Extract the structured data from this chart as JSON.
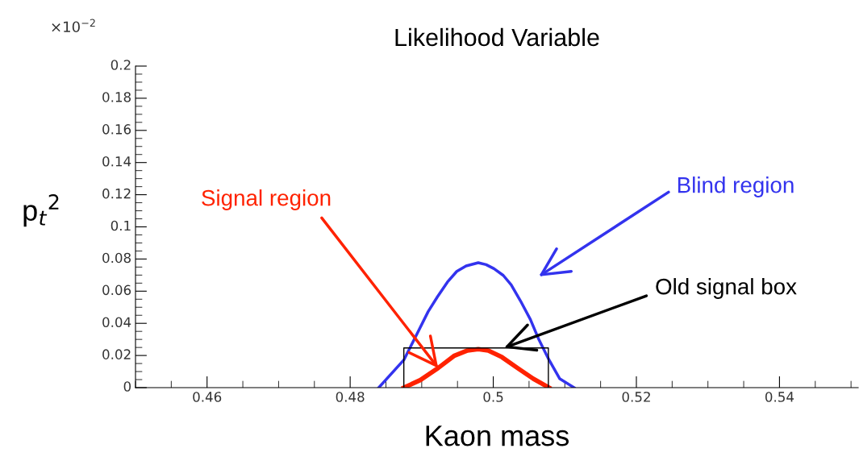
{
  "chart_data": {
    "type": "line",
    "title": "Likelihood Variable",
    "xlabel": "Kaon mass",
    "ylabel": "p$_{t}$$^{2}$",
    "series": [
      {
        "color": "#3333ee",
        "x": [
          0.484,
          0.4875,
          0.4894,
          0.4909,
          0.4922,
          0.4936,
          0.4949,
          0.4962,
          0.4979,
          0.499,
          0.5001,
          0.5014,
          0.5025,
          0.5038,
          0.5052,
          0.5063,
          0.5078,
          0.5093,
          0.5113
        ],
        "values": [
          0,
          0.0172,
          0.034,
          0.0473,
          0.0565,
          0.0657,
          0.0723,
          0.0757,
          0.0777,
          0.0765,
          0.074,
          0.0698,
          0.064,
          0.054,
          0.0423,
          0.0306,
          0.0172,
          0.0055,
          0
        ]
      },
      {
        "color": "#ff2200",
        "x": [
          0.4875,
          0.4898,
          0.4923,
          0.4945,
          0.4964,
          0.4979,
          0.4993,
          0.5012,
          0.5034,
          0.5056,
          0.5078
        ],
        "values": [
          0,
          0.0047,
          0.0122,
          0.0197,
          0.0231,
          0.0239,
          0.0231,
          0.019,
          0.0122,
          0.0055,
          0
        ]
      },
      {
        "color": "#000000",
        "x": [
          0.4875,
          0.4875,
          0.5077,
          0.5077
        ],
        "values": [
          0,
          0.0247,
          0.0247,
          0
        ]
      }
    ],
    "xlim": [
      0.45,
      0.551
    ],
    "xticks": [
      0.46,
      0.48,
      0.5,
      0.52,
      0.54
    ],
    "ylim": [
      0,
      0.2
    ],
    "yticks": [
      0,
      0.02,
      0.04,
      0.06,
      0.08,
      0.1,
      0.12,
      0.14,
      0.16,
      0.18,
      0.2
    ],
    "grid": false,
    "legend": false,
    "annotations": [
      "×10$^{−2}$",
      {
        "text": "Signal region",
        "x": 0.4923,
        "y": 0.0122
      },
      "Blind region",
      {
        "text": "Old signal box",
        "x": 0.5015,
        "y": 0.0247
      }
    ]
  }
}
